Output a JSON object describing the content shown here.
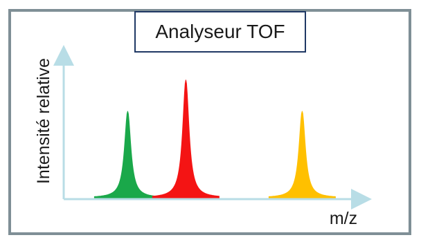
{
  "chart_data": {
    "type": "line",
    "title": "Analyseur TOF",
    "xlabel": "m/z",
    "ylabel": "Intensité relative",
    "ylim": [
      0,
      1
    ],
    "grid": false,
    "legend": "none",
    "x_ticks": "none",
    "y_ticks": "none",
    "series": [
      {
        "color": "#1aa84a",
        "peak_x": 0.22,
        "peak_height": 0.72
      },
      {
        "color": "#f41414",
        "peak_x": 0.42,
        "peak_height": 0.98
      },
      {
        "color": "#ffc000",
        "peak_x": 0.82,
        "peak_height": 0.72
      }
    ]
  },
  "colors": {
    "frame": "#7f8f96",
    "title_border": "#1f3864",
    "axis": "#b8dde6"
  }
}
